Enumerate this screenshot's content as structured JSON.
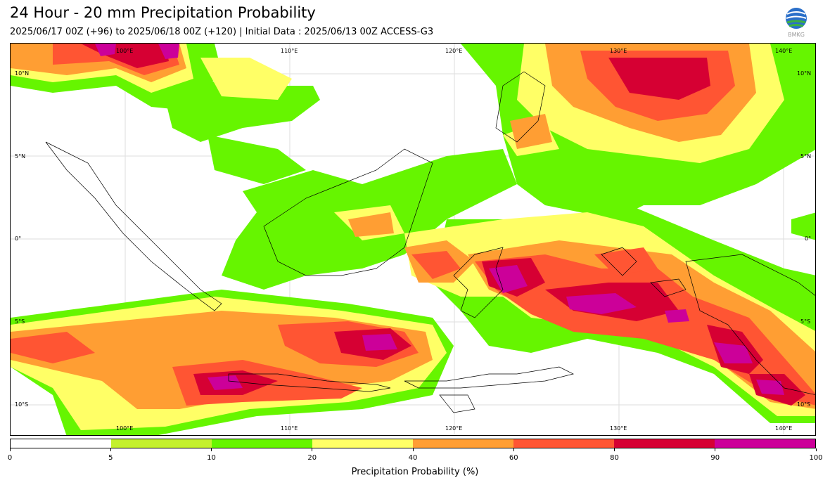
{
  "header": {
    "title": "24 Hour - 20 mm Precipitation Probability",
    "subtitle": "2025/06/17 00Z (+96) to 2025/06/18 00Z (+120) | Initial Data : 2025/06/13 00Z ACCESS-G3",
    "logo_text": "BMKG"
  },
  "map": {
    "top_lon_labels": [
      "100°E",
      "110°E",
      "120°E",
      "130°E",
      "140°E"
    ],
    "bottom_lon_labels": [
      "100°E",
      "110°E",
      "120°E",
      "130°E",
      "140°E"
    ],
    "left_lat_labels": [
      "10°N",
      "5°N",
      "0°",
      "5°S",
      "10°S"
    ],
    "right_lat_labels": [
      "10°N",
      "5°N",
      "0°",
      "5°S",
      "10°S"
    ]
  },
  "colorbar": {
    "label": "Precipitation Probability (%)",
    "ticks": [
      "0",
      "5",
      "10",
      "20",
      "40",
      "60",
      "80",
      "90",
      "100"
    ],
    "colors": [
      "#ffffff",
      "#c4f12e",
      "#66f500",
      "#ffff66",
      "#ff9e33",
      "#ff5533",
      "#d60033",
      "#cc0099"
    ]
  },
  "colors": {
    "level_5": "#c4f12e",
    "level_10": "#66f500",
    "level_20": "#ffff66",
    "level_40": "#ff9e33",
    "level_60": "#ff5533",
    "level_80": "#d60033",
    "level_90": "#cc0099"
  }
}
